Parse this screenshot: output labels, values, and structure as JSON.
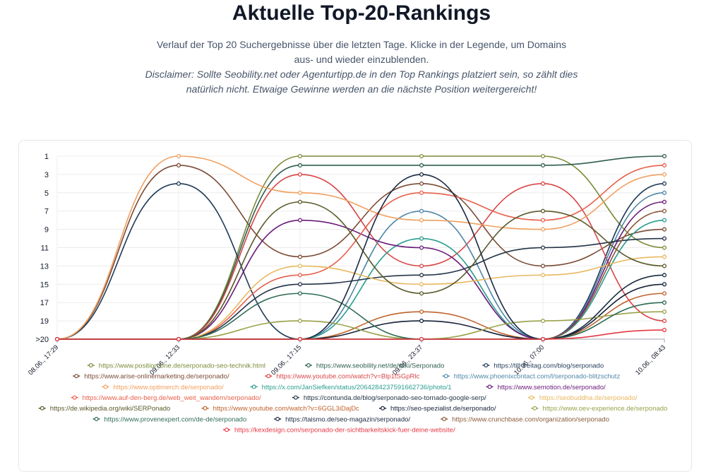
{
  "header": {
    "title": "Aktuelle Top-20-Rankings",
    "subtitle": "Verlauf der Top 20 Suchergebnisse über die letzten Tage. Klicke in der Legende, um Domains aus- und wieder einzublenden.",
    "disclaimer": "Disclaimer: Sollte Seobility.net oder Agenturtipp.de in den Top Rankings platziert sein, so zählt dies natürlich nicht. Etwaige Gewinne werden an die nächste Position weitergereicht!"
  },
  "chart_data": {
    "type": "line",
    "x": [
      "08.06., 17:29",
      "09.06., 12:33",
      "09.06., 17:15",
      "09.06., 23:37",
      "10.06., 07:00",
      "10.06., 08:43"
    ],
    "y_ticks": [
      "1",
      "3",
      "5",
      "7",
      "9",
      "11",
      "13",
      "15",
      "17",
      "19",
      ">20"
    ],
    "y_tick_values": [
      1,
      3,
      5,
      7,
      9,
      11,
      13,
      15,
      17,
      19,
      21
    ],
    "ylim": [
      1,
      21
    ],
    "y_reversed": true,
    "grid": true,
    "legend_position": "bottom",
    "series": [
      {
        "name": "https://www.position-one.de/serponado-seo-technik.html",
        "color": "#7a8c3a",
        "values": [
          21,
          21,
          1,
          1,
          1,
          11
        ]
      },
      {
        "name": "https://www.seobility.net/de/wiki/Serponado",
        "color": "#2e5e4e",
        "values": [
          21,
          21,
          2,
          2,
          2,
          1
        ]
      },
      {
        "name": "https://till-freitag.com/blog/serponado",
        "color": "#1f3b57",
        "values": [
          21,
          4,
          21,
          21,
          21,
          4
        ]
      },
      {
        "name": "https://www.arise-onlinemarketing.de/serponado/",
        "color": "#7a4a34",
        "values": [
          21,
          2,
          12,
          4,
          13,
          9
        ]
      },
      {
        "name": "https://www.youtube.com/watch?v=Blp1tSGpRlc",
        "color": "#d94545",
        "values": [
          21,
          21,
          3,
          13,
          4,
          19
        ]
      },
      {
        "name": "https://www.phoenixcontact.com/l/serponado-blitzschutz",
        "color": "#4f86a8",
        "values": [
          21,
          21,
          21,
          7,
          21,
          5
        ]
      },
      {
        "name": "https://www.optimerch.de/serponado/",
        "color": "#f0a060",
        "values": [
          21,
          1,
          5,
          8,
          9,
          3
        ]
      },
      {
        "name": "https://x.com/JanSiefken/status/2064284237591662736/photo/1",
        "color": "#2a9d8f",
        "values": [
          21,
          21,
          21,
          10,
          21,
          8
        ]
      },
      {
        "name": "https://www.semotion.de/serponado/",
        "color": "#6a1b7a",
        "values": [
          21,
          21,
          8,
          11,
          21,
          6
        ]
      },
      {
        "name": "https://www.auf-den-berg.de/web_weit_wandern/serponado/",
        "color": "#e8604c",
        "values": [
          21,
          21,
          14,
          5,
          8,
          2
        ]
      },
      {
        "name": "https://contunda.de/blog/serponado-seo-tornado-google-serp/",
        "color": "#243447",
        "values": [
          21,
          21,
          15,
          14,
          11,
          10
        ]
      },
      {
        "name": "https://seobuddha.de/serponado/",
        "color": "#e8b860",
        "values": [
          21,
          21,
          13,
          15,
          14,
          12
        ]
      },
      {
        "name": "https://de.wikipedia.org/wiki/SERPonado",
        "color": "#5a5a2a",
        "values": [
          21,
          21,
          6,
          16,
          7,
          13
        ]
      },
      {
        "name": "https://www.youtube.com/watch?v=6GGL3iDajDc",
        "color": "#c0622b",
        "values": [
          21,
          21,
          21,
          18,
          21,
          16
        ]
      },
      {
        "name": "https://seo-spezialist.de/serponado/",
        "color": "#152238",
        "values": [
          21,
          21,
          21,
          19,
          21,
          15
        ]
      },
      {
        "name": "https://www.oev-experience.de/serponado",
        "color": "#9aa24a",
        "values": [
          21,
          21,
          19,
          21,
          19,
          18
        ]
      },
      {
        "name": "https://www.provenexpert.com/de-de/serponado",
        "color": "#2f6b55",
        "values": [
          21,
          21,
          16,
          21,
          21,
          17
        ]
      },
      {
        "name": "https://taismo.de/seo-magazin/serponado/",
        "color": "#1a2a40",
        "values": [
          21,
          21,
          21,
          3,
          21,
          14
        ]
      },
      {
        "name": "https://www.crunchbase.com/organization/serponado",
        "color": "#8a5a3a",
        "values": [
          21,
          21,
          21,
          21,
          21,
          7
        ]
      },
      {
        "name": "https://kexdesign.com/serponado-der-sichtbarkeitskick-fuer-deine-website/",
        "color": "#e53945",
        "values": [
          21,
          21,
          21,
          21,
          21,
          20
        ]
      }
    ],
    "legend_rows": [
      [
        0,
        1,
        2
      ],
      [
        3,
        4,
        5
      ],
      [
        6,
        7,
        8
      ],
      [
        9,
        10,
        11
      ],
      [
        12,
        13,
        14,
        15
      ],
      [
        16,
        17,
        18
      ],
      [
        19
      ]
    ]
  }
}
